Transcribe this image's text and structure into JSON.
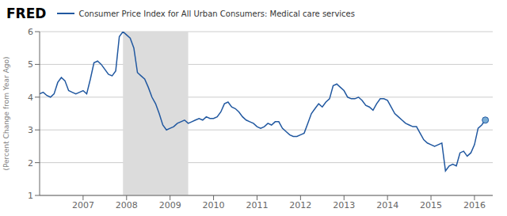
{
  "chart_data": {
    "type": "line",
    "title": "FRED",
    "ylabel": "(Percent Change from Year Ago)",
    "legend": "top left",
    "grid": true,
    "x": [
      2006.0,
      2006.083,
      2006.167,
      2006.25,
      2006.333,
      2006.417,
      2006.5,
      2006.583,
      2006.667,
      2006.75,
      2006.833,
      2006.917,
      2007.0,
      2007.083,
      2007.167,
      2007.25,
      2007.333,
      2007.417,
      2007.5,
      2007.583,
      2007.667,
      2007.75,
      2007.833,
      2007.917,
      2008.0,
      2008.083,
      2008.167,
      2008.25,
      2008.333,
      2008.417,
      2008.5,
      2008.583,
      2008.667,
      2008.75,
      2008.833,
      2008.917,
      2009.0,
      2009.083,
      2009.167,
      2009.25,
      2009.333,
      2009.417,
      2009.5,
      2009.583,
      2009.667,
      2009.75,
      2009.833,
      2009.917,
      2010.0,
      2010.083,
      2010.167,
      2010.25,
      2010.333,
      2010.417,
      2010.5,
      2010.583,
      2010.667,
      2010.75,
      2010.833,
      2010.917,
      2011.0,
      2011.083,
      2011.167,
      2011.25,
      2011.333,
      2011.417,
      2011.5,
      2011.583,
      2011.667,
      2011.75,
      2011.833,
      2011.917,
      2012.0,
      2012.083,
      2012.167,
      2012.25,
      2012.333,
      2012.417,
      2012.5,
      2012.583,
      2012.667,
      2012.75,
      2012.833,
      2012.917,
      2013.0,
      2013.083,
      2013.167,
      2013.25,
      2013.333,
      2013.417,
      2013.5,
      2013.583,
      2013.667,
      2013.75,
      2013.833,
      2013.917,
      2014.0,
      2014.083,
      2014.167,
      2014.25,
      2014.333,
      2014.417,
      2014.5,
      2014.583,
      2014.667,
      2014.75,
      2014.833,
      2014.917,
      2015.0,
      2015.083,
      2015.167,
      2015.25,
      2015.333,
      2015.417,
      2015.5,
      2015.583,
      2015.667,
      2015.75,
      2015.833,
      2015.917,
      2016.0,
      2016.083,
      2016.167,
      2016.25
    ],
    "series": [
      {
        "name": "Consumer Price Index for All Urban Consumers: Medical care services",
        "color": "#2158a0",
        "values": [
          4.1,
          4.15,
          4.05,
          4.0,
          4.1,
          4.45,
          4.6,
          4.5,
          4.2,
          4.15,
          4.1,
          4.15,
          4.2,
          4.1,
          4.55,
          5.05,
          5.1,
          5.0,
          4.85,
          4.7,
          4.65,
          4.8,
          5.85,
          6.0,
          5.9,
          5.8,
          5.5,
          4.75,
          4.65,
          4.55,
          4.3,
          4.0,
          3.8,
          3.5,
          3.15,
          3.0,
          3.05,
          3.1,
          3.2,
          3.25,
          3.3,
          3.2,
          3.25,
          3.3,
          3.35,
          3.3,
          3.4,
          3.35,
          3.35,
          3.4,
          3.55,
          3.8,
          3.85,
          3.7,
          3.65,
          3.55,
          3.4,
          3.3,
          3.25,
          3.2,
          3.1,
          3.05,
          3.1,
          3.2,
          3.15,
          3.25,
          3.25,
          3.05,
          2.95,
          2.85,
          2.8,
          2.8,
          2.85,
          2.9,
          3.2,
          3.5,
          3.65,
          3.8,
          3.7,
          3.85,
          3.95,
          4.35,
          4.4,
          4.3,
          4.2,
          4.0,
          3.95,
          3.95,
          4.0,
          3.9,
          3.75,
          3.7,
          3.6,
          3.8,
          3.95,
          3.95,
          3.9,
          3.7,
          3.5,
          3.4,
          3.3,
          3.2,
          3.15,
          3.1,
          3.1,
          2.9,
          2.7,
          2.6,
          2.55,
          2.5,
          2.55,
          2.6,
          1.75,
          1.9,
          1.95,
          1.9,
          2.3,
          2.35,
          2.2,
          2.3,
          2.55,
          3.05,
          3.15,
          3.3
        ]
      }
    ],
    "xlim": [
      2006.0,
      2016.42
    ],
    "xticks": [
      2007,
      2008,
      2009,
      2010,
      2011,
      2012,
      2013,
      2014,
      2015,
      2016
    ],
    "ylim": [
      1,
      6
    ],
    "yticks": [
      1,
      2,
      3,
      4,
      5,
      6
    ],
    "shaded_region": [
      2007.917,
      2009.417
    ],
    "shaded_color": "#dcdcdc",
    "endpoint_color": "#7aaed6"
  }
}
